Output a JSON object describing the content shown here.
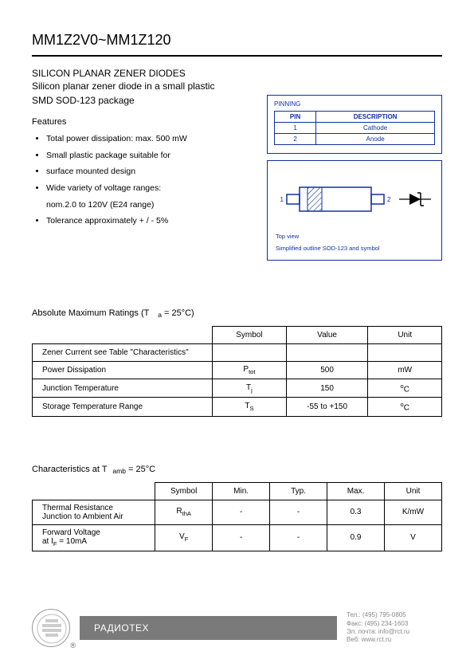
{
  "header": {
    "title": "MM1Z2V0~MM1Z120",
    "subtitle1": "SILICON PLANAR ZENER DIODES",
    "subtitle2": "Silicon planar zener diode in a small plastic",
    "subtitle3": "SMD SOD-123 package"
  },
  "features": {
    "heading": "Features",
    "items": [
      "Total power dissipation: max. 500 mW",
      "Small plastic package suitable for",
      "surface mounted design",
      "Wide variety of voltage ranges:",
      "nom.2.0 to 120V (E24 range)",
      "Tolerance approximately + / - 5%"
    ],
    "bulleted": [
      true,
      true,
      true,
      true,
      false,
      true
    ]
  },
  "pinning": {
    "title": "PINNING",
    "cols": [
      "PIN",
      "DESCRIPTION"
    ],
    "rows": [
      [
        "1",
        "Cathode"
      ],
      [
        "2",
        "Anode"
      ]
    ]
  },
  "diagram": {
    "top_view": "Top view",
    "caption": "Simplified outline SOD-123  and symbol",
    "pin1": "1",
    "pin2": "2",
    "stroke_color": "#1030a0",
    "hatch_color": "#1030a0",
    "band_fill": "#1030a0"
  },
  "abs_max": {
    "heading_prefix": "Absolute Maximum Ratings (T",
    "heading_sub": "a",
    "heading_suffix": " = 25°C)",
    "cols": [
      "",
      "Symbol",
      "Value",
      "Unit"
    ],
    "rows": [
      {
        "param": "Zener Current see Table \"Characteristics\"",
        "symbol": "",
        "value": "",
        "unit": ""
      },
      {
        "param": "Power Dissipation",
        "symbol": "P",
        "symbol_sub": "tot",
        "value": "500",
        "unit": "mW"
      },
      {
        "param": "Junction Temperature",
        "symbol": "T",
        "symbol_sub": "j",
        "value": "150",
        "unit": "°C"
      },
      {
        "param": "Storage Temperature Range",
        "symbol": "T",
        "symbol_sub": "S",
        "value": "-55 to +150",
        "unit": "°C"
      }
    ],
    "col_widths": [
      "44%",
      "18%",
      "20%",
      "18%"
    ]
  },
  "characteristics": {
    "heading_prefix": "Characteristics at T",
    "heading_sub": "amb",
    "heading_suffix": " = 25°C",
    "cols": [
      "",
      "Symbol",
      "Min.",
      "Typ.",
      "Max.",
      "Unit"
    ],
    "rows": [
      {
        "param_l1": "Thermal Resistance",
        "param_l2": "Junction to Ambient Air",
        "symbol": "R",
        "symbol_sub": "thA",
        "min": "-",
        "typ": "-",
        "max": "0.3",
        "unit": "K/mW"
      },
      {
        "param_l1": "Forward Voltage",
        "param_l2_prefix": "at I",
        "param_l2_sub": "F",
        "param_l2_suffix": " = 10mA",
        "symbol": "V",
        "symbol_sub": "F",
        "min": "-",
        "typ": "-",
        "max": "0.9",
        "unit": "V"
      }
    ],
    "col_widths": [
      "30%",
      "14%",
      "14%",
      "14%",
      "14%",
      "14%"
    ]
  },
  "footer": {
    "brand": "РАДИОТЕХ",
    "contact": {
      "tel": "Тел.: (495) 795-0805",
      "fax": "Факс: (495) 234-1603",
      "email": "Эл. почта: info@rct.ru",
      "web": "Веб: www.rct.ru"
    },
    "bar_bg": "#7a7a7a",
    "bar_fg": "#ffffff"
  }
}
